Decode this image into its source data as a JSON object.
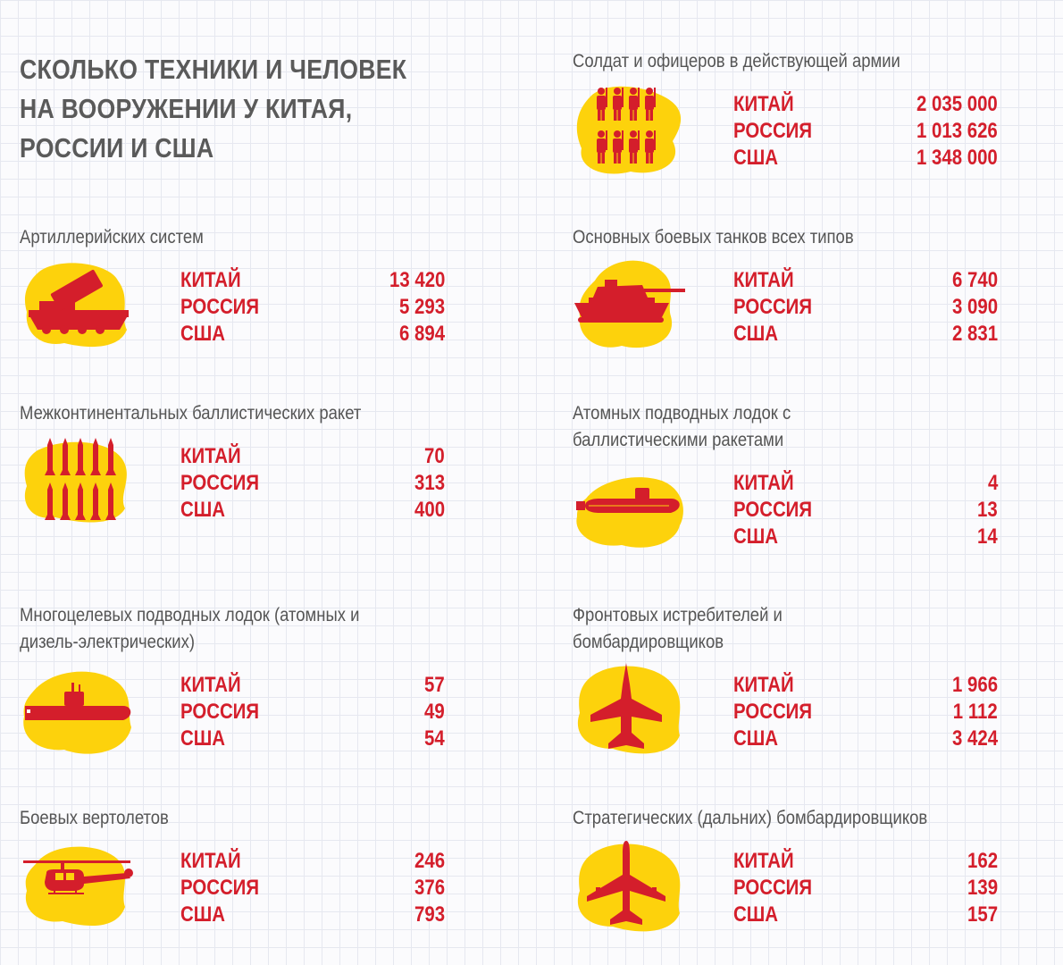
{
  "title": "СКОЛЬКО ТЕХНИКИ И ЧЕЛОВЕК\nНА ВООРУЖЕНИИ У КИТАЯ,\nРОССИИ И США",
  "colors": {
    "accent_red": "#d41e2b",
    "blob_yellow": "#fdd20c",
    "text_gray": "#555555"
  },
  "chart_data": [
    {
      "type": "table",
      "title": "Солдат и офицеров в действующей армии",
      "icon": "soldiers-icon",
      "categories": [
        "КИТАЙ",
        "РОССИЯ",
        "США"
      ],
      "values": [
        2035000,
        1013626,
        1348000
      ],
      "labels": [
        "2 035 000",
        "1 013 626",
        "1 348 000"
      ]
    },
    {
      "type": "table",
      "title": "Артиллерийских систем",
      "icon": "artillery-icon",
      "categories": [
        "КИТАЙ",
        "РОССИЯ",
        "США"
      ],
      "values": [
        13420,
        5293,
        6894
      ],
      "labels": [
        "13 420",
        "5 293",
        "6 894"
      ]
    },
    {
      "type": "table",
      "title": "Основных боевых танков всех типов",
      "icon": "tank-icon",
      "categories": [
        "КИТАЙ",
        "РОССИЯ",
        "США"
      ],
      "values": [
        6740,
        3090,
        2831
      ],
      "labels": [
        "6 740",
        "3 090",
        "2 831"
      ]
    },
    {
      "type": "table",
      "title": "Межконтинентальных баллистических ракет",
      "icon": "missiles-icon",
      "categories": [
        "КИТАЙ",
        "РОССИЯ",
        "США"
      ],
      "values": [
        70,
        313,
        400
      ],
      "labels": [
        "70",
        "313",
        "400"
      ]
    },
    {
      "type": "table",
      "title": "Атомных подводных лодок с\nбаллистическими ракетами",
      "icon": "ballistic-submarine-icon",
      "categories": [
        "КИТАЙ",
        "РОССИЯ",
        "США"
      ],
      "values": [
        4,
        13,
        14
      ],
      "labels": [
        "4",
        "13",
        "14"
      ]
    },
    {
      "type": "table",
      "title": "Многоцелевых подводных лодок (атомных и\nдизель-электрических)",
      "icon": "submarine-icon",
      "categories": [
        "КИТАЙ",
        "РОССИЯ",
        "США"
      ],
      "values": [
        57,
        49,
        54
      ],
      "labels": [
        "57",
        "49",
        "54"
      ]
    },
    {
      "type": "table",
      "title": "Фронтовых истребителей и\nбомбардировщиков",
      "icon": "fighter-jet-icon",
      "categories": [
        "КИТАЙ",
        "РОССИЯ",
        "США"
      ],
      "values": [
        1966,
        1112,
        3424
      ],
      "labels": [
        "1 966",
        "1 112",
        "3 424"
      ]
    },
    {
      "type": "table",
      "title": "Боевых вертолетов",
      "icon": "helicopter-icon",
      "categories": [
        "КИТАЙ",
        "РОССИЯ",
        "США"
      ],
      "values": [
        246,
        376,
        793
      ],
      "labels": [
        "246",
        "376",
        "793"
      ]
    },
    {
      "type": "table",
      "title": "Стратегических (дальних) бомбардировщиков",
      "icon": "bomber-icon",
      "categories": [
        "КИТАЙ",
        "РОССИЯ",
        "США"
      ],
      "values": [
        162,
        139,
        157
      ],
      "labels": [
        "162",
        "139",
        "157"
      ]
    }
  ]
}
